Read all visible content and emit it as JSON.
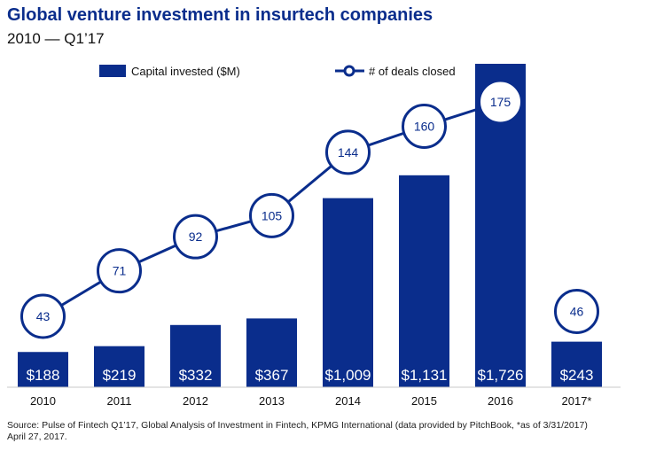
{
  "title": "Global venture investment in insurtech companies",
  "subtitle": "2010 — Q1’17",
  "chart_data": {
    "type": "bar",
    "title": "Global venture investment in insurtech companies",
    "subtitle": "2010 — Q1’17",
    "categories": [
      "2010",
      "2011",
      "2012",
      "2013",
      "2014",
      "2015",
      "2016",
      "2017*"
    ],
    "series": [
      {
        "name": "Capital invested ($M)",
        "kind": "bar",
        "values": [
          188,
          219,
          332,
          367,
          1009,
          1131,
          1726,
          243
        ],
        "labels": [
          "$188",
          "$219",
          "$332",
          "$367",
          "$1,009",
          "$1,131",
          "$1,726",
          "$243"
        ]
      },
      {
        "name": "# of deals closed",
        "kind": "line",
        "values": [
          43,
          71,
          92,
          105,
          144,
          160,
          175,
          46
        ],
        "labels": [
          "43",
          "71",
          "92",
          "105",
          "144",
          "160",
          "175",
          "46"
        ],
        "connected": [
          true,
          true,
          true,
          true,
          true,
          true,
          true,
          false
        ]
      }
    ],
    "bar_ylim": [
      0,
      1726
    ],
    "line_ylim": [
      43,
      175
    ],
    "xlabel": "",
    "ylabel": "",
    "legend": "top-center",
    "grid": false
  },
  "source": "Source: Pulse of Fintech Q1’17, Global Analysis of Investment in Fintech, KPMG International (data provided by PitchBook, *as  of 3/31/2017)",
  "source_date": "April 27, 2017.",
  "colors": {
    "bar": "#0a2d8c",
    "line": "#0a2d8c",
    "marker_fill": "#ffffff",
    "bar_label": "#ffffff",
    "axis": "#c8c8c8"
  }
}
